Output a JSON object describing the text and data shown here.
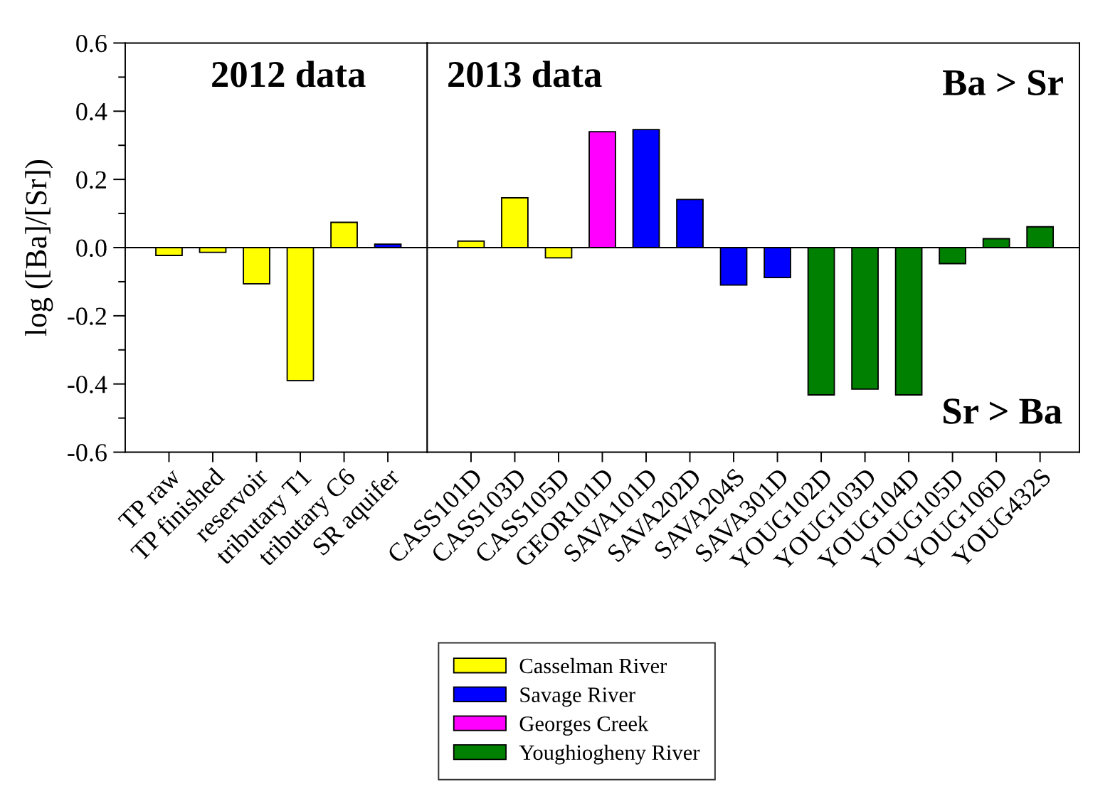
{
  "chart_data": [
    {
      "type": "bar",
      "stacked": true,
      "ylabel": "log ([Ba]/[Sr])",
      "categories": [
        "TP raw",
        "TP finished",
        "reservoir",
        "tributary T1",
        "tributary C6",
        "SR aquifer"
      ],
      "series": [
        {
          "color": "#ffff00",
          "values": [
            -0.023,
            -0.014,
            -0.106,
            -0.39,
            0.074,
            null
          ]
        },
        {
          "color": "#0000ff",
          "values": [
            null,
            null,
            null,
            null,
            null,
            0.01
          ]
        }
      ],
      "ylim": [
        -0.6,
        0.6
      ],
      "yticks": [
        -0.6,
        {
          "value": -0.5,
          "label": null
        },
        -0.4,
        {
          "value": -0.3,
          "label": null
        },
        -0.2,
        {
          "value": -0.1,
          "label": null
        },
        {
          "value": 0,
          "label": "0.0"
        },
        {
          "value": 0.1,
          "label": null
        },
        0.2,
        {
          "value": 0.3,
          "label": null
        },
        0.4,
        {
          "value": 0.5,
          "label": null
        },
        0.6
      ],
      "ref_lines": [
        {
          "axis": "y",
          "value": 0,
          "color": "#000000"
        }
      ],
      "annotations": [
        "2012 data"
      ]
    },
    {
      "type": "bar",
      "stacked": true,
      "tick_labels": "x",
      "categories": [
        "CASS101D",
        "CASS103D",
        "CASS105D",
        "GEOR101D",
        "SAVA101D",
        "SAVA202D",
        "SAVA204S",
        "SAVA301D",
        "YOUG102D",
        "YOUG103D",
        "YOUG104D",
        "YOUG105D",
        "YOUG106D",
        "YOUG432S"
      ],
      "series": [
        {
          "name": "Casselman River",
          "color": "#ffff00",
          "values": [
            0.019,
            0.146,
            -0.03,
            null,
            null,
            null,
            null,
            null,
            null,
            null,
            null,
            null,
            null,
            null
          ]
        },
        {
          "name": "Savage River",
          "color": "#0000ff",
          "values": [
            null,
            null,
            null,
            null,
            0.346,
            0.141,
            -0.11,
            -0.088,
            null,
            null,
            null,
            null,
            null,
            null
          ]
        },
        {
          "name": "Georges Creek",
          "color": "#ff00ff",
          "values": [
            null,
            null,
            null,
            0.34,
            null,
            null,
            null,
            null,
            null,
            null,
            null,
            null,
            null,
            null
          ]
        },
        {
          "name": "Youghiogheny River",
          "color": "#008000",
          "values": [
            null,
            null,
            null,
            null,
            null,
            null,
            null,
            null,
            -0.432,
            -0.415,
            -0.432,
            -0.047,
            0.026,
            0.061
          ]
        }
      ],
      "ylim": [
        -0.6,
        0.6
      ],
      "ref_lines": [
        {
          "axis": "y",
          "value": 0,
          "color": "#000000"
        }
      ],
      "legend": "bottom",
      "annotations": [
        "2013 data",
        "Ba > Sr",
        "Sr > Ba"
      ]
    }
  ]
}
